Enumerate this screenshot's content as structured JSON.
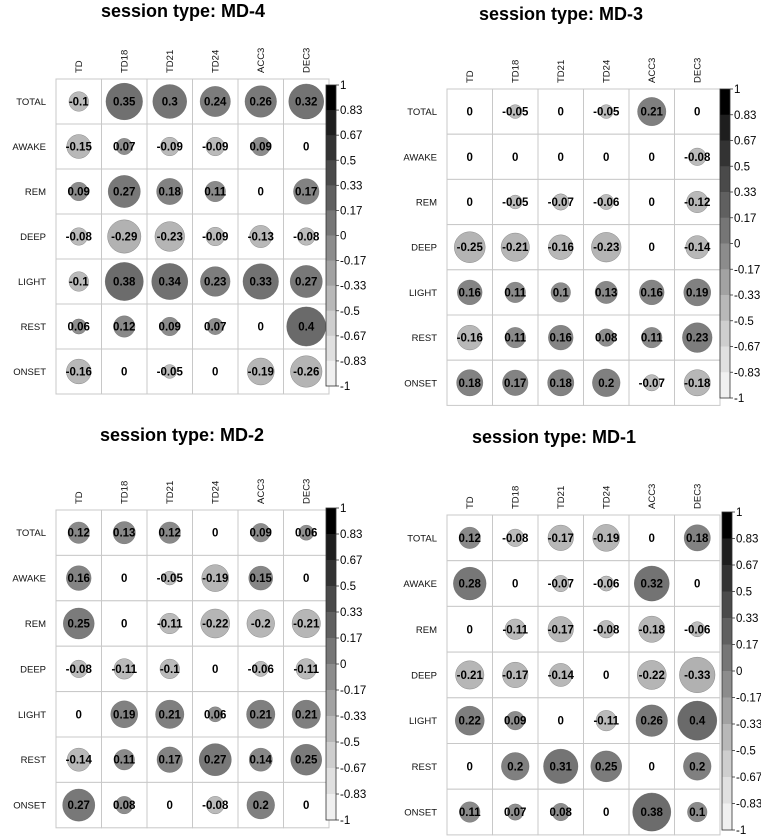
{
  "colorbar": {
    "ticks": [
      "1",
      "0.83",
      "0.67",
      "0.5",
      "0.33",
      "0.17",
      "0",
      "-0.17",
      "-0.33",
      "-0.5",
      "-0.67",
      "-0.83",
      "-1"
    ]
  },
  "chart_data": [
    {
      "type": "heatmap",
      "title": "session type: MD-4",
      "columns": [
        "TD",
        "TD18",
        "TD21",
        "TD24",
        "ACC3",
        "DEC3"
      ],
      "rows": [
        "TOTAL",
        "AWAKE",
        "REM",
        "DEEP",
        "LIGHT",
        "REST",
        "ONSET"
      ],
      "values": [
        [
          -0.1,
          0.35,
          0.3,
          0.24,
          0.26,
          0.32
        ],
        [
          -0.15,
          0.07,
          -0.09,
          -0.09,
          0.09,
          0
        ],
        [
          0.09,
          0.27,
          0.18,
          0.11,
          0,
          0.17
        ],
        [
          -0.08,
          -0.29,
          -0.23,
          -0.09,
          -0.13,
          -0.08
        ],
        [
          -0.1,
          0.38,
          0.34,
          0.23,
          0.33,
          0.27
        ],
        [
          0.06,
          0.12,
          0.09,
          0.07,
          0,
          0.4
        ],
        [
          -0.16,
          0,
          -0.05,
          0,
          -0.19,
          -0.26
        ]
      ],
      "labels": [
        [
          "-0.1",
          "0.35",
          "0.3",
          "0.24",
          "0.26",
          "0.32"
        ],
        [
          "-0.15",
          "0.07",
          "-0.09",
          "-0.09",
          "0.09",
          "0"
        ],
        [
          "0.09",
          "0.27",
          "0.18",
          "0.11",
          "0",
          "0.17"
        ],
        [
          "-0.08",
          "-0.29",
          "-0.23",
          "-0.09",
          "-0.13",
          "-0.08"
        ],
        [
          "-0.1",
          "0.38",
          "0.34",
          "0.23",
          "0.33",
          "0.27"
        ],
        [
          "0.06",
          "0.12",
          "0.09",
          "0.07",
          "0",
          "0.4"
        ],
        [
          "-0.16",
          "0",
          "-0.05",
          "0",
          "-0.19",
          "-0.26"
        ]
      ],
      "scale_range": [
        -1,
        1
      ]
    },
    {
      "type": "heatmap",
      "title": "session type: MD-3",
      "columns": [
        "TD",
        "TD18",
        "TD21",
        "TD24",
        "ACC3",
        "DEC3"
      ],
      "rows": [
        "TOTAL",
        "AWAKE",
        "REM",
        "DEEP",
        "LIGHT",
        "REST",
        "ONSET"
      ],
      "values": [
        [
          0,
          -0.05,
          0,
          -0.05,
          0.21,
          0
        ],
        [
          0,
          0,
          0,
          0,
          0,
          -0.08
        ],
        [
          0,
          -0.05,
          -0.07,
          -0.06,
          0,
          -0.12
        ],
        [
          -0.25,
          -0.21,
          -0.16,
          -0.23,
          0,
          -0.14
        ],
        [
          0.16,
          0.11,
          0.1,
          0.13,
          0.16,
          0.19
        ],
        [
          -0.16,
          0.11,
          0.16,
          0.08,
          0.11,
          0.23
        ],
        [
          0.18,
          0.17,
          0.18,
          0.2,
          -0.07,
          -0.18
        ]
      ],
      "labels": [
        [
          "0",
          "-0.05",
          "0",
          "-0.05",
          "0.21",
          "0"
        ],
        [
          "0",
          "0",
          "0",
          "0",
          "0",
          "-0.08"
        ],
        [
          "0",
          "-0.05",
          "-0.07",
          "-0.06",
          "0",
          "-0.12"
        ],
        [
          "-0.25",
          "-0.21",
          "-0.16",
          "-0.23",
          "0",
          "-0.14"
        ],
        [
          "0.16",
          "0.11",
          "0.1",
          "0.13",
          "0.16",
          "0.19"
        ],
        [
          "-0.16",
          "0.11",
          "0.16",
          "0.08",
          "0.11",
          "0.23"
        ],
        [
          "0.18",
          "0.17",
          "0.18",
          "0.2",
          "-0.07",
          "-0.18"
        ]
      ],
      "scale_range": [
        -1,
        1
      ]
    },
    {
      "type": "heatmap",
      "title": "session type: MD-2",
      "columns": [
        "TD",
        "TD18",
        "TD21",
        "TD24",
        "ACC3",
        "DEC3"
      ],
      "rows": [
        "TOTAL",
        "AWAKE",
        "REM",
        "DEEP",
        "LIGHT",
        "REST",
        "ONSET"
      ],
      "values": [
        [
          0.12,
          0.13,
          0.12,
          0,
          0.09,
          0.06
        ],
        [
          0.16,
          0,
          -0.05,
          -0.19,
          0.15,
          0
        ],
        [
          0.25,
          0,
          -0.11,
          -0.22,
          -0.2,
          -0.21
        ],
        [
          -0.08,
          -0.11,
          -0.1,
          0,
          -0.06,
          -0.11
        ],
        [
          0,
          0.19,
          0.21,
          0.06,
          0.21,
          0.21
        ],
        [
          -0.14,
          0.11,
          0.17,
          0.27,
          0.14,
          0.25
        ],
        [
          0.27,
          0.08,
          0,
          -0.08,
          0.2,
          0
        ]
      ],
      "labels": [
        [
          "0.12",
          "0.13",
          "0.12",
          "0",
          "0.09",
          "0.06"
        ],
        [
          "0.16",
          "0",
          "-0.05",
          "-0.19",
          "0.15",
          "0"
        ],
        [
          "0.25",
          "0",
          "-0.11",
          "-0.22",
          "-0.2",
          "-0.21"
        ],
        [
          "-0.08",
          "-0.11",
          "-0.1",
          "0",
          "-0.06",
          "-0.11"
        ],
        [
          "0",
          "0.19",
          "0.21",
          "0.06",
          "0.21",
          "0.21"
        ],
        [
          "-0.14",
          "0.11",
          "0.17",
          "0.27",
          "0.14",
          "0.25"
        ],
        [
          "0.27",
          "0.08",
          "0",
          "-0.08",
          "0.2",
          "0"
        ]
      ],
      "scale_range": [
        -1,
        1
      ]
    },
    {
      "type": "heatmap",
      "title": "session type: MD-1",
      "columns": [
        "TD",
        "TD18",
        "TD21",
        "TD24",
        "ACC3",
        "DEC3"
      ],
      "rows": [
        "TOTAL",
        "AWAKE",
        "REM",
        "DEEP",
        "LIGHT",
        "REST",
        "ONSET"
      ],
      "values": [
        [
          0.12,
          -0.08,
          -0.17,
          -0.19,
          0,
          0.18
        ],
        [
          0.28,
          0,
          -0.07,
          -0.06,
          0.32,
          0
        ],
        [
          0,
          -0.11,
          -0.17,
          -0.08,
          -0.18,
          -0.06
        ],
        [
          -0.21,
          -0.17,
          -0.14,
          0,
          -0.22,
          -0.33
        ],
        [
          0.22,
          0.09,
          0,
          -0.11,
          0.26,
          0.4
        ],
        [
          0,
          0.2,
          0.31,
          0.25,
          0,
          0.2
        ],
        [
          0.11,
          0.07,
          0.08,
          0,
          0.38,
          0.1
        ]
      ],
      "labels": [
        [
          "0.12",
          "-0.08",
          "-0.17",
          "-0.19",
          "0",
          "0.18"
        ],
        [
          "0.28",
          "0",
          "-0.07",
          "-0.06",
          "0.32",
          "0"
        ],
        [
          "0",
          "-0.11",
          "-0.17",
          "-0.08",
          "-0.18",
          "-0.06"
        ],
        [
          "-0.21",
          "-0.17",
          "-0.14",
          "0",
          "-0.22",
          "-0.33"
        ],
        [
          "0.22",
          "0.09",
          "0",
          "-0.11",
          "0.26",
          "0.4"
        ],
        [
          "0",
          "0.2",
          "0.31",
          "0.25",
          "0",
          "0.2"
        ],
        [
          "0.11",
          "0.07",
          "0.08",
          "0",
          "0.38",
          "0.1"
        ]
      ],
      "scale_range": [
        -1,
        1
      ]
    }
  ]
}
